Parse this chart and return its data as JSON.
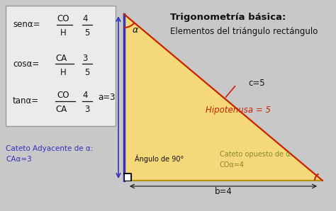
{
  "bg_color": "#c8c8c8",
  "box_bg": "#ebebeb",
  "box_edge": "#999999",
  "triangle_fill": "#f5d87a",
  "triangle_edge": "#b8940a",
  "title": "Trigonometría básica:",
  "subtitle": "Elementos del triángulo rectángulo",
  "blue_color": "#3333bb",
  "red_color": "#cc2200",
  "dark_text": "#111111",
  "olive_text": "#888833",
  "white_color": "#ffffff",
  "label_a": "a=3",
  "label_b": "b=4",
  "label_c": "c=5",
  "label_hipotenusa": "Hipotenusa = 5",
  "label_angulo": "Ángulo de 90°",
  "label_cateto_op_1": "Cateto opuesto de α:",
  "label_cateto_op_2": "COα=4",
  "label_cateto_ad_1": "Cateto Adyacente de α:",
  "label_cateto_ad_2": "CAα=3",
  "label_alpha": "α",
  "figsize": [
    4.74,
    2.98
  ],
  "dpi": 100
}
